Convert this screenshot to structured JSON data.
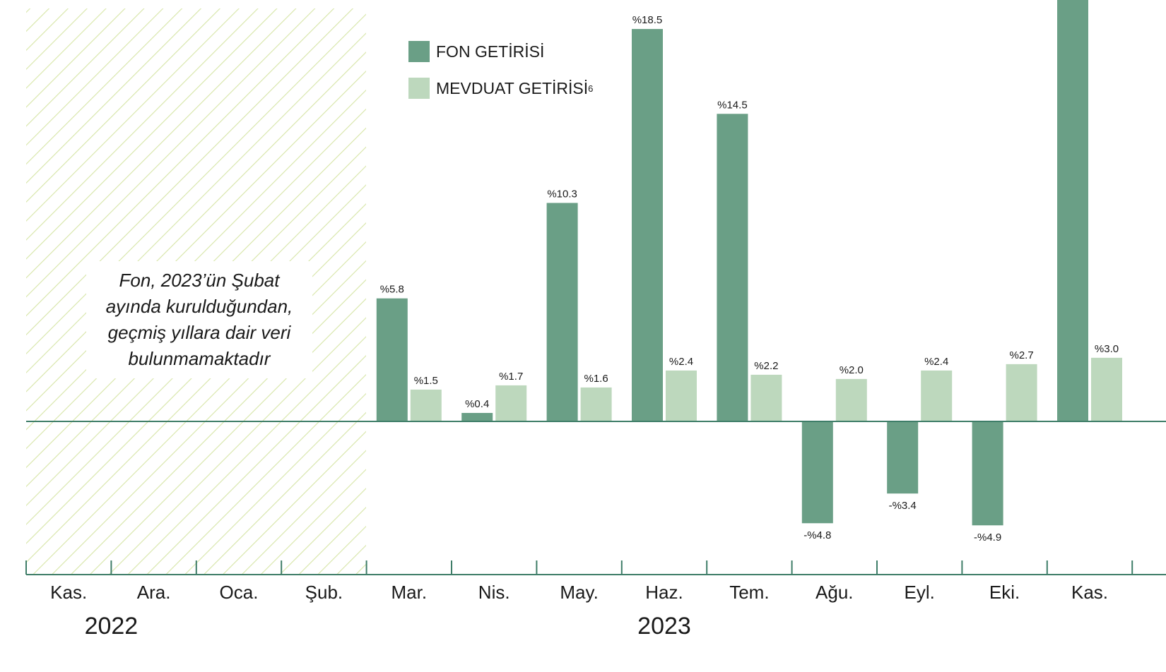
{
  "chart_data": {
    "type": "bar",
    "categories": [
      "Kas.",
      "Ara.",
      "Oca.",
      "Şub.",
      "Mar.",
      "Nis.",
      "May.",
      "Haz.",
      "Tem.",
      "Ağu.",
      "Eyl.",
      "Eki.",
      "Kas."
    ],
    "year_labels": [
      {
        "text": "2022",
        "category": "Ara."
      },
      {
        "text": "2023",
        "category": "Haz."
      }
    ],
    "series": [
      {
        "name": "FON GETİRİSİ",
        "color": "#6a9f86",
        "values": [
          null,
          null,
          null,
          null,
          5.8,
          0.4,
          10.3,
          18.5,
          14.5,
          -4.8,
          -3.4,
          -4.9,
          20.0
        ],
        "labels": [
          "",
          "",
          "",
          "",
          "%5.8",
          "%0.4",
          "%10.3",
          "%18.5",
          "%14.5",
          "-%4.8",
          "-%3.4",
          "-%4.9",
          ""
        ]
      },
      {
        "name": "MEVDUAT GETİRİSİ",
        "color": "#bdd8bd",
        "values": [
          null,
          null,
          null,
          null,
          1.5,
          1.7,
          1.6,
          2.4,
          2.2,
          2.0,
          2.4,
          2.7,
          3.0
        ],
        "labels": [
          "",
          "",
          "",
          "",
          "%1.5",
          "%1.7",
          "%1.6",
          "%2.4",
          "%2.2",
          "%2.0",
          "%2.4",
          "%2.7",
          "%3.0"
        ]
      }
    ],
    "legend": [
      {
        "label": "FON GETİRİSİ",
        "sup": "",
        "color": "#6a9f86"
      },
      {
        "label": "MEVDUAT GETİRİSİ",
        "sup": "6",
        "color": "#bdd8bd"
      }
    ],
    "note": "Fon, 2023’ün Şubat ayında kurulduğundan, geçmiş yıllara dair veri bulunmamaktadır",
    "no_data_categories": [
      "Kas.",
      "Ara.",
      "Oca.",
      "Şub."
    ],
    "axis_color": "#3e7d68",
    "hatch_color": "#d6e5a6",
    "title": "",
    "xlabel": "",
    "ylabel": "",
    "grid": false,
    "legend_position": "top-center"
  }
}
